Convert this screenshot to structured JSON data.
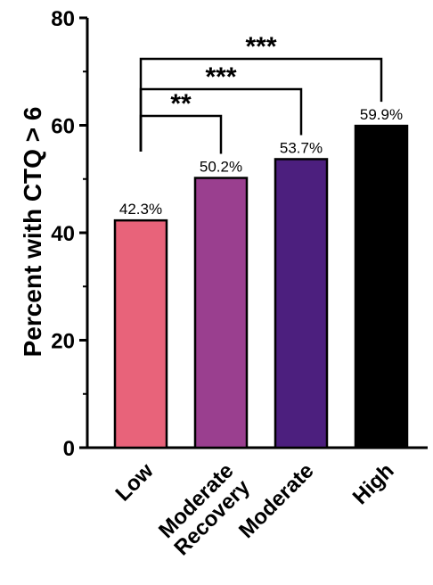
{
  "chart_data": {
    "type": "bar",
    "categories": [
      "Low",
      "Moderate Recovery",
      "Moderate",
      "High"
    ],
    "category_lines": [
      [
        "Low"
      ],
      [
        "Moderate",
        "Recovery"
      ],
      [
        "Moderate"
      ],
      [
        "High"
      ]
    ],
    "values": [
      42.3,
      50.2,
      53.7,
      59.9
    ],
    "data_labels": [
      "42.3%",
      "50.2%",
      "53.7%",
      "59.9%"
    ],
    "colors": [
      "#e8637a",
      "#9a3f8f",
      "#4c1f7e",
      "#000000"
    ],
    "title": "",
    "xlabel": "",
    "ylabel": "Percent with CTQ > 6",
    "ylim": [
      0,
      80
    ],
    "yticks": [
      0,
      20,
      40,
      60,
      80
    ],
    "grid": false,
    "significance": [
      {
        "from": 0,
        "to": 1,
        "label": "**"
      },
      {
        "from": 0,
        "to": 2,
        "label": "***"
      },
      {
        "from": 0,
        "to": 3,
        "label": "***"
      }
    ]
  }
}
